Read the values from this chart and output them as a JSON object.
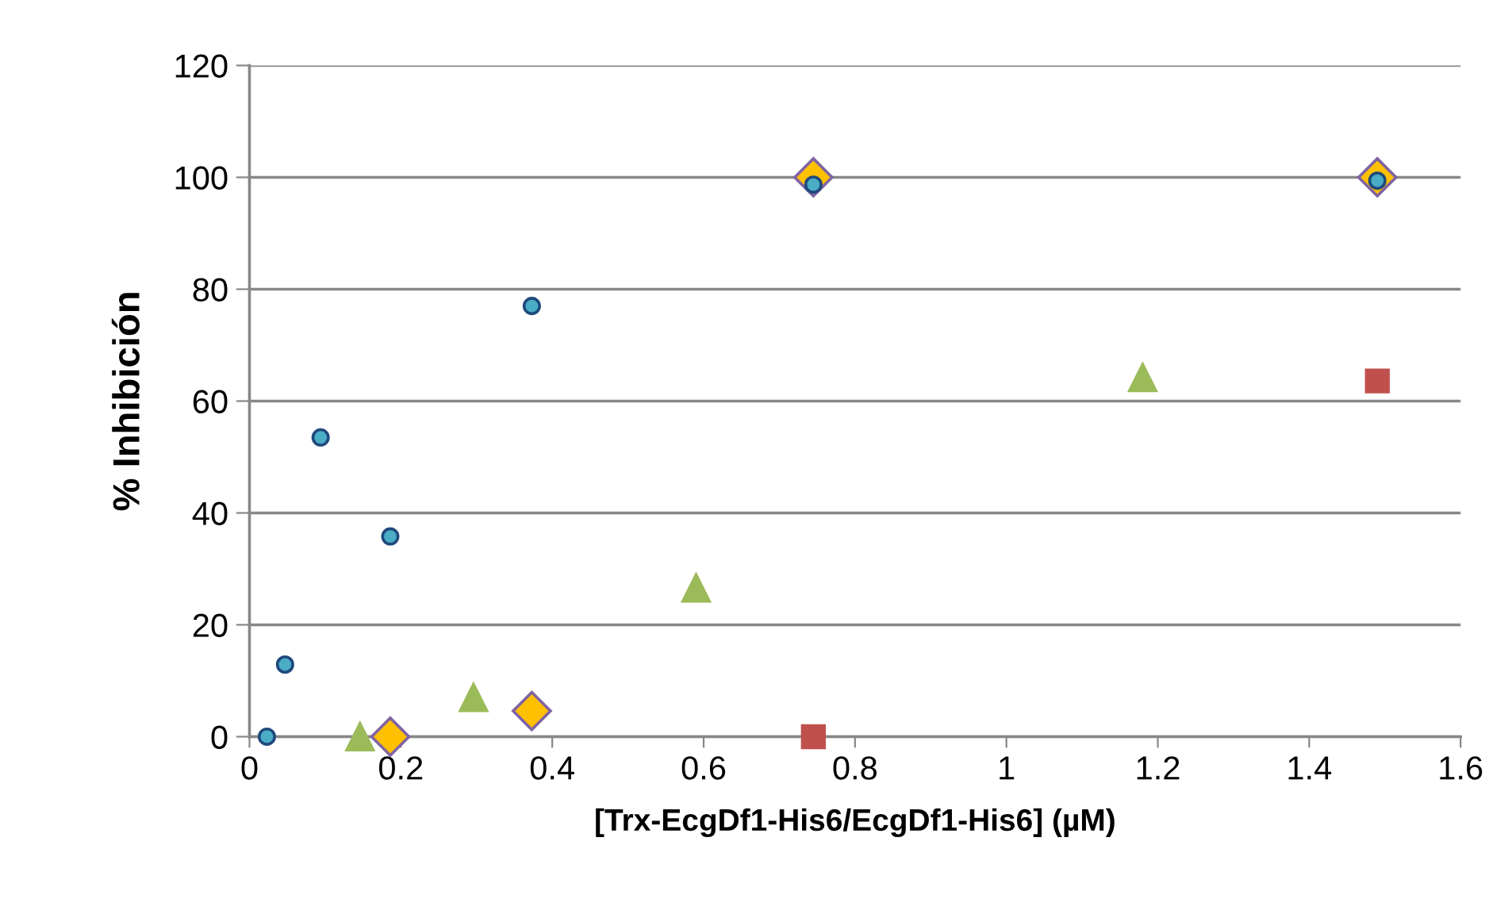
{
  "chart_data": {
    "type": "scatter",
    "xlabel": "[Trx-EcgDf1-His6/EcgDf1-His6] (µM)",
    "ylabel": "% Inhibición",
    "xlim": [
      0,
      1.6
    ],
    "xticks": [
      0,
      0.2,
      0.4,
      0.6,
      0.8,
      1,
      1.2,
      1.4,
      1.6
    ],
    "ylim": [
      0,
      120
    ],
    "yticks": [
      0,
      20,
      40,
      60,
      80,
      100,
      120
    ],
    "grid": "y",
    "legend": false,
    "series": [
      {
        "color": "#4bacc6",
        "marker": "circle",
        "x": [
          0.023,
          0.047,
          0.094,
          0.186,
          0.373,
          0.745,
          1.49
        ],
        "values": [
          0,
          12.9,
          53.5,
          35.8,
          77,
          98.7,
          99.4
        ]
      },
      {
        "color": "#9bbb59",
        "marker": "triangle",
        "x": [
          0.146,
          0.296,
          0.59,
          1.18
        ],
        "values": [
          0,
          7,
          26.6,
          64.2
        ]
      },
      {
        "color": "#ffc000",
        "marker": "diamond",
        "x": [
          0.186,
          0.373,
          0.745,
          1.49
        ],
        "values": [
          0,
          4.6,
          100,
          100
        ]
      },
      {
        "color": "#c0504d",
        "marker": "square",
        "x": [
          0.745,
          1.49
        ],
        "values": [
          0,
          63.6
        ]
      }
    ]
  }
}
